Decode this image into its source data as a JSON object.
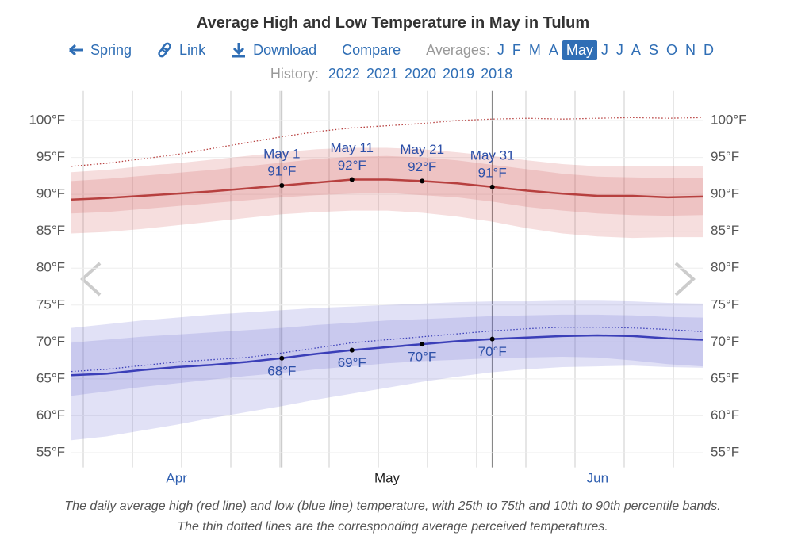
{
  "header": {
    "title": "Average High and Low Temperature in May in Tulum",
    "nav": [
      "Spring",
      "Link",
      "Download",
      "Compare"
    ],
    "averages_label": "Averages:",
    "months": [
      "J",
      "F",
      "M",
      "A",
      "May",
      "J",
      "J",
      "A",
      "S",
      "O",
      "N",
      "D"
    ],
    "selected_month": 4,
    "history_label": "History:",
    "years": [
      "2022",
      "2021",
      "2020",
      "2019",
      "2018"
    ]
  },
  "chart_data": {
    "type": "line",
    "categories": [
      null,
      null,
      null,
      "Apr",
      null,
      null,
      null,
      null,
      null,
      "May",
      null,
      null,
      null,
      null,
      null,
      "Jun",
      null,
      null,
      null
    ],
    "date_labels": [
      null,
      null,
      null,
      null,
      null,
      null,
      "May 1",
      null,
      "May 11",
      null,
      "May 21",
      null,
      "May 31",
      null,
      null,
      null,
      null,
      null,
      null
    ],
    "ylim": [
      53,
      104
    ],
    "yticks": [
      {
        "value": 55,
        "label": "55°F"
      },
      {
        "value": 60,
        "label": "60°F"
      },
      {
        "value": 65,
        "label": "65°F"
      },
      {
        "value": 70,
        "label": "70°F"
      },
      {
        "value": 75,
        "label": "75°F"
      },
      {
        "value": 80,
        "label": "80°F"
      },
      {
        "value": 85,
        "label": "85°F"
      },
      {
        "value": 90,
        "label": "90°F"
      },
      {
        "value": 95,
        "label": "95°F"
      },
      {
        "value": 100,
        "label": "100°F"
      }
    ],
    "grid": true,
    "series": [
      {
        "color": "#b7403f",
        "band_color": "#d35a5a",
        "label_position": "above",
        "values": [
          89.3,
          89.5,
          89.8,
          90.1,
          90.4,
          90.8,
          91.2,
          91.6,
          92.0,
          92.0,
          91.8,
          91.5,
          91.0,
          90.5,
          90.1,
          89.8,
          89.8,
          89.6,
          89.7
        ],
        "value_labels": [
          null,
          null,
          null,
          null,
          null,
          null,
          "91°F",
          null,
          "92°F",
          null,
          "92°F",
          null,
          "91°F",
          null,
          null,
          null,
          null,
          null,
          null
        ],
        "p10": [
          84.7,
          84.9,
          85.3,
          85.8,
          86.3,
          86.8,
          87.3,
          87.6,
          87.8,
          87.8,
          87.5,
          87.0,
          86.3,
          85.4,
          84.7,
          84.3,
          84.1,
          84.2,
          84.2
        ],
        "p25": [
          87.4,
          87.6,
          88.0,
          88.4,
          88.8,
          89.2,
          89.6,
          89.9,
          90.1,
          90.2,
          89.9,
          89.6,
          89.0,
          88.3,
          87.8,
          87.4,
          87.2,
          87.1,
          87.2
        ],
        "p75": [
          91.8,
          92.1,
          92.5,
          92.9,
          93.3,
          93.8,
          94.3,
          94.8,
          95.1,
          95.2,
          95.0,
          94.6,
          94.0,
          93.4,
          92.8,
          92.4,
          92.3,
          92.2,
          92.2
        ],
        "p90": [
          93.0,
          93.3,
          93.8,
          94.2,
          94.7,
          95.2,
          95.7,
          96.1,
          96.3,
          96.3,
          96.1,
          95.7,
          95.2,
          94.6,
          94.1,
          93.8,
          93.8,
          93.8,
          93.8
        ],
        "perceived": [
          93.8,
          94.2,
          94.8,
          95.4,
          96.2,
          97.0,
          97.8,
          98.5,
          99.0,
          99.3,
          99.6,
          100.0,
          100.2,
          100.3,
          100.2,
          100.3,
          100.4,
          100.3,
          100.4
        ]
      },
      {
        "color": "#3b3fb8",
        "band_color": "#6a6ad0",
        "label_position": "below",
        "values": [
          65.5,
          65.7,
          66.2,
          66.6,
          66.9,
          67.3,
          67.8,
          68.4,
          68.9,
          69.3,
          69.7,
          70.1,
          70.4,
          70.6,
          70.8,
          70.9,
          70.8,
          70.5,
          70.3
        ],
        "value_labels": [
          null,
          null,
          null,
          null,
          null,
          null,
          "68°F",
          null,
          "69°F",
          null,
          "70°F",
          null,
          "70°F",
          null,
          null,
          null,
          null,
          null,
          null
        ],
        "p10": [
          56.7,
          57.2,
          58.0,
          58.8,
          59.7,
          60.5,
          61.3,
          62.2,
          63.0,
          63.8,
          64.6,
          65.3,
          65.9,
          66.3,
          66.6,
          66.7,
          66.8,
          66.6,
          66.5
        ],
        "p25": [
          62.7,
          63.3,
          63.9,
          64.4,
          64.9,
          65.4,
          65.8,
          66.3,
          66.7,
          67.1,
          67.4,
          67.6,
          67.8,
          67.9,
          68.0,
          67.9,
          67.5,
          67.0,
          66.7
        ],
        "p75": [
          69.9,
          70.3,
          70.7,
          71.0,
          71.3,
          71.6,
          71.9,
          72.3,
          72.6,
          72.9,
          73.1,
          73.3,
          73.5,
          73.6,
          73.7,
          73.7,
          73.6,
          73.4,
          73.3
        ],
        "p90": [
          71.9,
          72.4,
          72.9,
          73.3,
          73.7,
          74.0,
          74.3,
          74.6,
          74.8,
          75.0,
          75.2,
          75.4,
          75.5,
          75.5,
          75.6,
          75.6,
          75.5,
          75.3,
          75.2
        ],
        "perceived": [
          66.0,
          66.3,
          66.8,
          67.3,
          67.6,
          67.9,
          68.5,
          69.2,
          69.9,
          70.3,
          70.7,
          71.1,
          71.5,
          71.8,
          72.0,
          72.0,
          71.9,
          71.7,
          71.4
        ]
      }
    ]
  },
  "caption": "The daily average high (red line) and low (blue line) temperature, with 25th to 75th and 10th to 90th percentile bands. The thin dotted lines are the corresponding average perceived temperatures."
}
